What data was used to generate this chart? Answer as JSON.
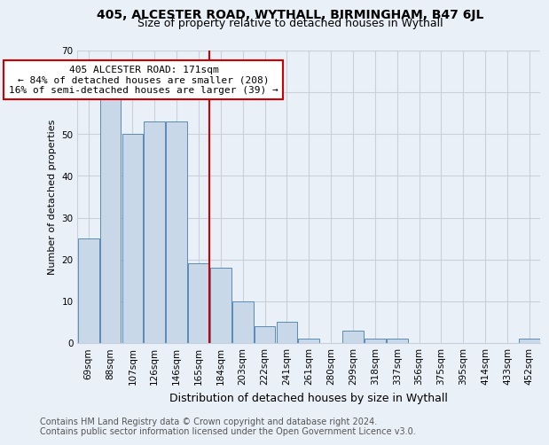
{
  "title": "405, ALCESTER ROAD, WYTHALL, BIRMINGHAM, B47 6JL",
  "subtitle": "Size of property relative to detached houses in Wythall",
  "xlabel": "Distribution of detached houses by size in Wythall",
  "ylabel": "Number of detached properties",
  "categories": [
    "69sqm",
    "88sqm",
    "107sqm",
    "126sqm",
    "146sqm",
    "165sqm",
    "184sqm",
    "203sqm",
    "222sqm",
    "241sqm",
    "261sqm",
    "280sqm",
    "299sqm",
    "318sqm",
    "337sqm",
    "356sqm",
    "375sqm",
    "395sqm",
    "414sqm",
    "433sqm",
    "452sqm"
  ],
  "values": [
    25,
    59,
    50,
    53,
    53,
    19,
    18,
    10,
    4,
    5,
    1,
    0,
    3,
    1,
    1,
    0,
    0,
    0,
    0,
    0,
    1
  ],
  "bar_color": "#c8d8e8",
  "bar_edge_color": "#5a8ab5",
  "subject_line_color": "#cc0000",
  "annotation_text": "405 ALCESTER ROAD: 171sqm\n← 84% of detached houses are smaller (208)\n16% of semi-detached houses are larger (39) →",
  "annotation_box_color": "#ffffff",
  "annotation_box_edge_color": "#cc0000",
  "ylim": [
    0,
    70
  ],
  "yticks": [
    0,
    10,
    20,
    30,
    40,
    50,
    60,
    70
  ],
  "grid_color": "#c8d0dc",
  "background_color": "#eaf0f8",
  "footnote": "Contains HM Land Registry data © Crown copyright and database right 2024.\nContains public sector information licensed under the Open Government Licence v3.0.",
  "title_fontsize": 10,
  "subtitle_fontsize": 9,
  "xlabel_fontsize": 9,
  "ylabel_fontsize": 8,
  "tick_fontsize": 7.5,
  "annotation_fontsize": 8,
  "footnote_fontsize": 7
}
